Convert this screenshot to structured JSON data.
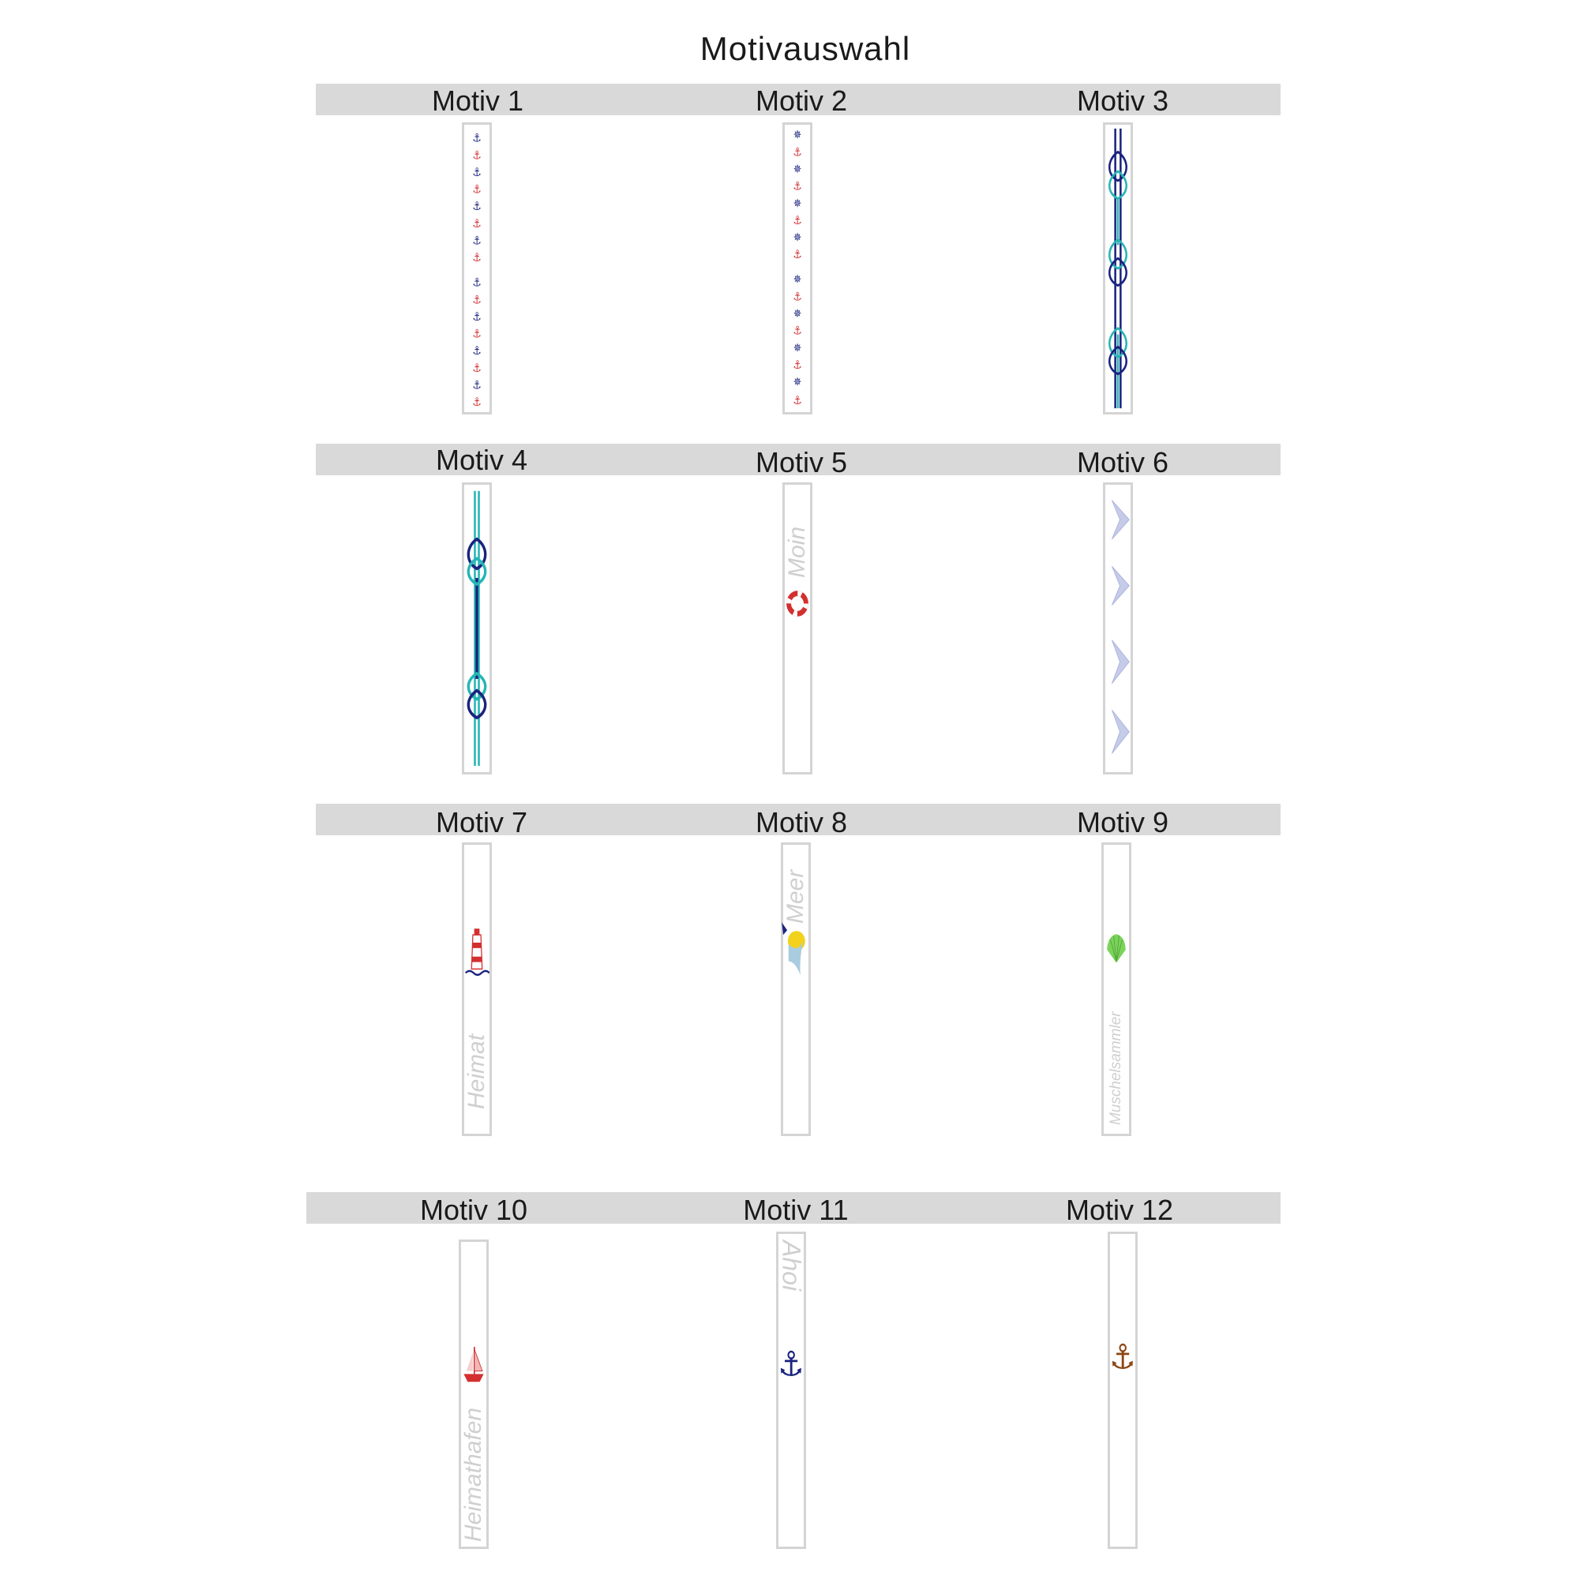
{
  "title": "Motivauswahl",
  "motifs": [
    {
      "label": "Motiv 1"
    },
    {
      "label": "Motiv 2"
    },
    {
      "label": "Motiv 3"
    },
    {
      "label": "Motiv 4"
    },
    {
      "label": "Motiv 5",
      "text": "Moin"
    },
    {
      "label": "Motiv 6"
    },
    {
      "label": "Motiv 7",
      "text": "Heimat"
    },
    {
      "label": "Motiv 8",
      "text": "Meer"
    },
    {
      "label": "Motiv 9",
      "text": "Muschelsammler"
    },
    {
      "label": "Motiv 10",
      "text": "Heimathafen"
    },
    {
      "label": "Motiv 11",
      "text": "Ahoi"
    },
    {
      "label": "Motiv 12"
    }
  ],
  "colors": {
    "band": "#d9d9d9",
    "navy": "#1a237e",
    "red": "#d32f2f",
    "teal": "#26b5b5",
    "brown": "#8b4513",
    "green": "#7cd35a",
    "yellow": "#f2d21c",
    "light_blue": "#aacce0",
    "lavender": "#c5cbe8"
  }
}
